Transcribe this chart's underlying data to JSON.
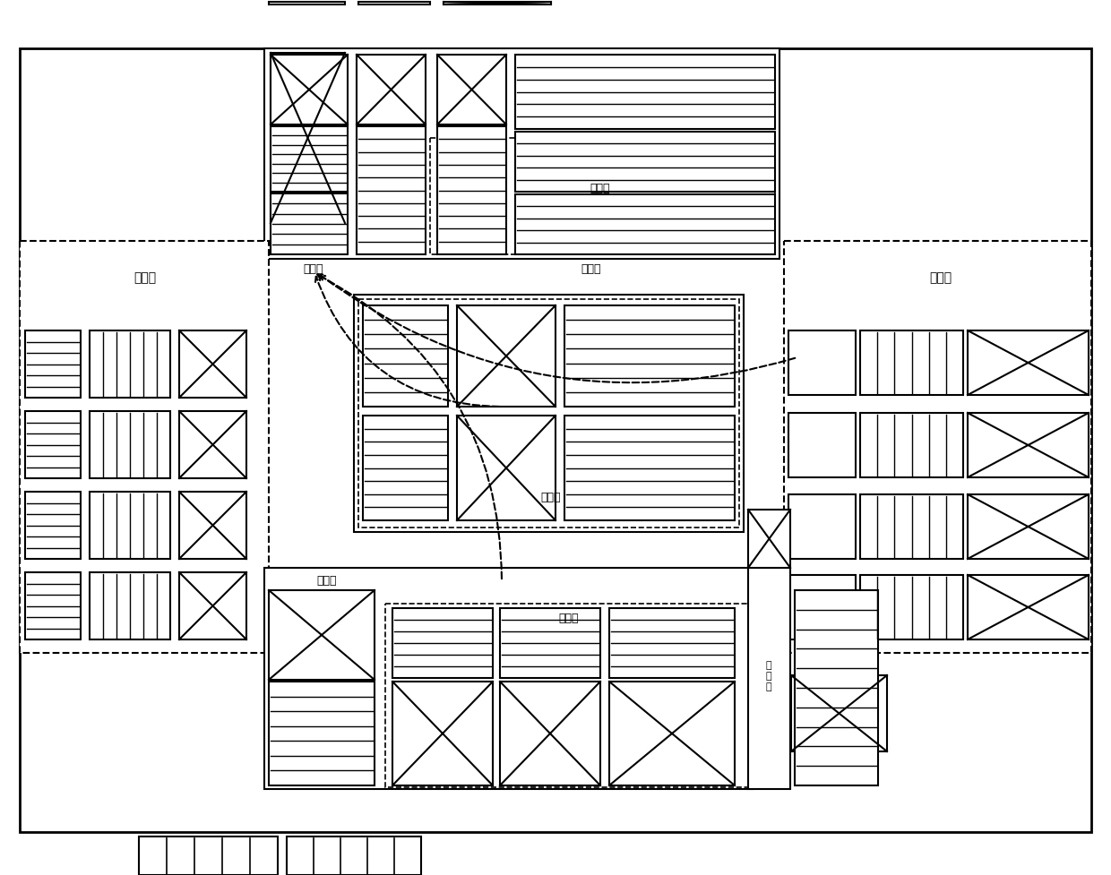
{
  "bg": "#ffffff",
  "lc": "#000000",
  "figsize": [
    12.4,
    9.78
  ],
  "dpi": 100,
  "labels": {
    "inbound_left": "入库区",
    "inbound_right": "入库区",
    "outbound_tl": "出库区",
    "outbound_tr": "出库区",
    "outbound_bl": "出库区",
    "outbound_br": "出库区",
    "temp_top": "暂存区",
    "temp_mid": "暂存区",
    "temp_bot": "暂存区"
  }
}
